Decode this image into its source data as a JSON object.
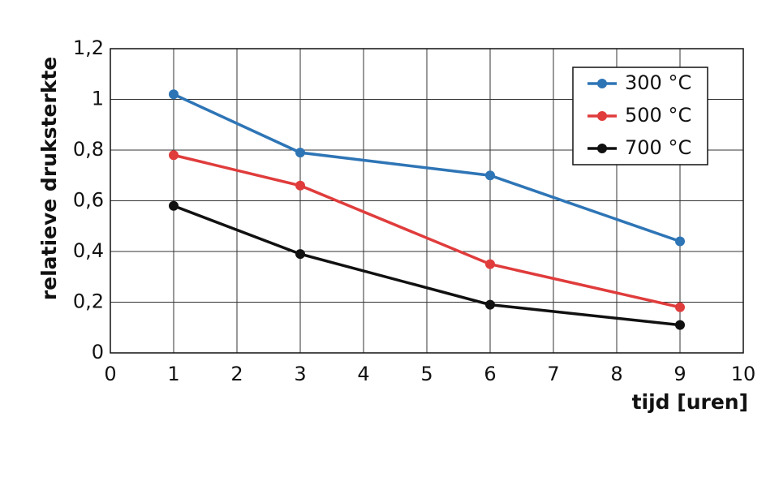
{
  "chart_data": {
    "type": "line",
    "x_label": "tijd [uren]",
    "y_label": "relatieve druksterkte",
    "x": [
      1,
      3,
      6,
      9
    ],
    "series": [
      {
        "name": "300 °C",
        "color": "#2e75b6",
        "values": [
          1.02,
          0.79,
          0.7,
          0.44
        ]
      },
      {
        "name": "500 °C",
        "color": "#e03c3c",
        "values": [
          0.78,
          0.66,
          0.35,
          0.18
        ]
      },
      {
        "name": "700 °C",
        "color": "#111111",
        "values": [
          0.58,
          0.39,
          0.19,
          0.11
        ]
      }
    ],
    "xlim": [
      0,
      10
    ],
    "xticks": [
      0,
      1,
      2,
      3,
      4,
      5,
      6,
      7,
      8,
      9,
      10
    ],
    "ylim": [
      0,
      1.2
    ],
    "yticks": [
      0,
      {
        "value": 0.2,
        "label": "0,2"
      },
      {
        "value": 0.4,
        "label": "0,4"
      },
      {
        "value": 0.6,
        "label": "0,6"
      },
      {
        "value": 0.8,
        "label": "0,8"
      },
      1,
      {
        "value": 1.2,
        "label": "1,2"
      }
    ],
    "grid": true,
    "legend": "upper-right"
  }
}
